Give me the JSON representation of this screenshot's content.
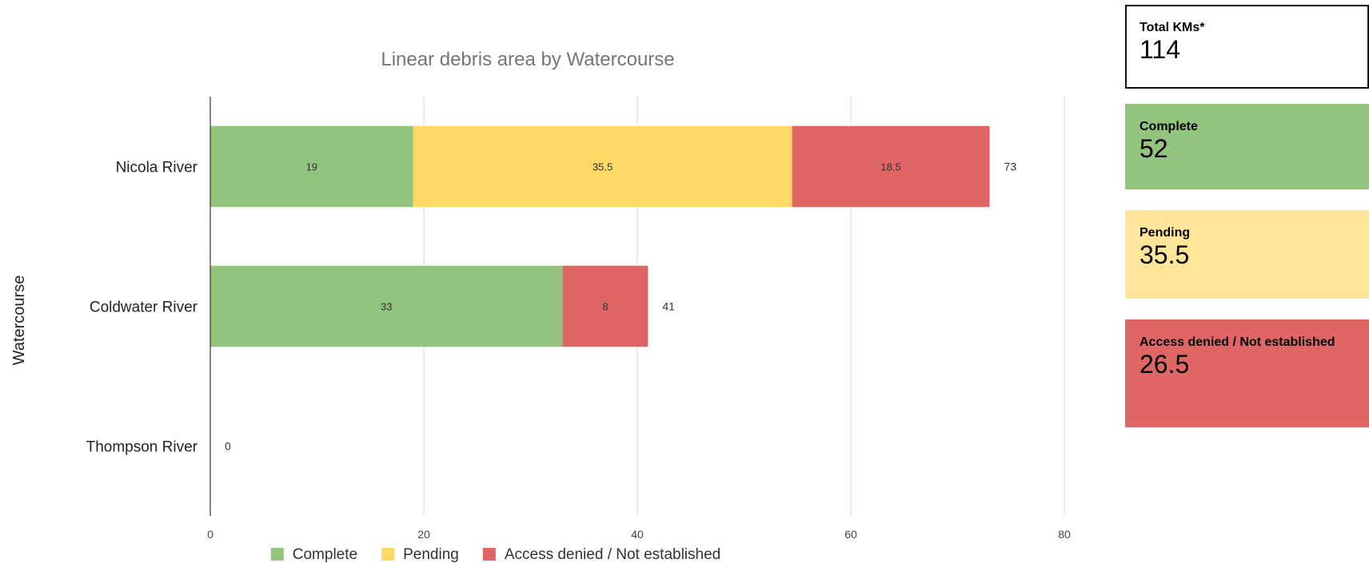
{
  "chart_data": {
    "type": "bar",
    "orientation": "horizontal",
    "stacked": true,
    "title": "Linear debris area by Watercourse",
    "xlabel": "",
    "ylabel": "Watercourse",
    "categories": [
      "Nicola River",
      "Coldwater River",
      "Thompson River"
    ],
    "series": [
      {
        "name": "Complete",
        "color": "#93c47d",
        "values": [
          19,
          33,
          0
        ],
        "labels": [
          "19",
          "33",
          ""
        ]
      },
      {
        "name": "Pending",
        "color": "#ffd966",
        "values": [
          35.5,
          0,
          0
        ],
        "labels": [
          "35.5",
          "",
          ""
        ]
      },
      {
        "name": "Access denied / Not established",
        "color": "#e06666",
        "values": [
          18.5,
          8,
          0
        ],
        "labels": [
          "18.5",
          "8",
          ""
        ]
      }
    ],
    "totals": [
      73,
      41,
      0
    ],
    "total_labels": [
      "73",
      "41",
      "0"
    ],
    "xlim": [
      0,
      80
    ],
    "xticks": [
      0,
      20,
      40,
      60,
      80
    ],
    "xtick_labels": [
      "0",
      "20",
      "40",
      "60",
      "80"
    ],
    "grid": true,
    "legend_position": "bottom"
  },
  "cards": {
    "total": {
      "label": "Total KMs*",
      "value": "114",
      "color": "#ffffff"
    },
    "complete": {
      "label": "Complete",
      "value": "52",
      "color": "#93c47d"
    },
    "pending": {
      "label": "Pending",
      "value": "35.5",
      "color": "#ffe599"
    },
    "denied": {
      "label": "Access denied / Not established",
      "value": "26.5",
      "color": "#e06666"
    }
  }
}
